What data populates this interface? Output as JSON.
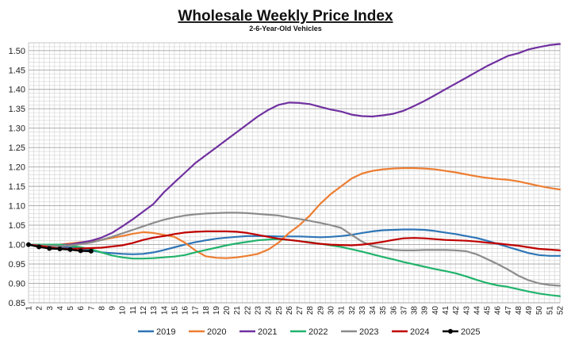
{
  "chart_data": {
    "type": "line",
    "title": "Wholesale Weekly Price Index",
    "subtitle": "2-6-Year-Old Vehicles",
    "xlabel": "",
    "ylabel": "",
    "ylim": [
      0.85,
      1.52
    ],
    "xlim": [
      1,
      52
    ],
    "y_ticks": [
      "0.85",
      "0.90",
      "0.95",
      "1.00",
      "1.05",
      "1.10",
      "1.15",
      "1.20",
      "1.25",
      "1.30",
      "1.35",
      "1.40",
      "1.45",
      "1.50"
    ],
    "x_ticks": [
      "1",
      "2",
      "3",
      "4",
      "5",
      "6",
      "7",
      "8",
      "9",
      "10",
      "11",
      "12",
      "13",
      "14",
      "15",
      "16",
      "17",
      "18",
      "19",
      "20",
      "21",
      "22",
      "23",
      "24",
      "25",
      "26",
      "27",
      "28",
      "29",
      "30",
      "31",
      "32",
      "33",
      "34",
      "35",
      "36",
      "37",
      "38",
      "39",
      "40",
      "41",
      "42",
      "43",
      "44",
      "45",
      "46",
      "47",
      "48",
      "49",
      "50",
      "51",
      "52"
    ],
    "grid": true,
    "legend_position": "bottom",
    "series": [
      {
        "name": "2019",
        "color": "#2e75b6",
        "markers": false,
        "x": [
          1,
          2,
          3,
          4,
          5,
          6,
          7,
          8,
          9,
          10,
          11,
          12,
          13,
          14,
          15,
          16,
          17,
          18,
          19,
          20,
          21,
          22,
          23,
          24,
          25,
          26,
          27,
          28,
          29,
          30,
          31,
          32,
          33,
          34,
          35,
          36,
          37,
          38,
          39,
          40,
          41,
          42,
          43,
          44,
          45,
          46,
          47,
          48,
          49,
          50,
          51,
          52
        ],
        "values": [
          1.0,
          1.0,
          0.998,
          0.995,
          0.992,
          0.99,
          0.985,
          0.98,
          0.978,
          0.976,
          0.975,
          0.976,
          0.98,
          0.986,
          0.993,
          1.0,
          1.006,
          1.011,
          1.015,
          1.018,
          1.02,
          1.022,
          1.022,
          1.022,
          1.021,
          1.021,
          1.021,
          1.02,
          1.019,
          1.02,
          1.022,
          1.025,
          1.03,
          1.034,
          1.037,
          1.038,
          1.039,
          1.039,
          1.038,
          1.035,
          1.031,
          1.027,
          1.022,
          1.017,
          1.01,
          1.002,
          0.994,
          0.986,
          0.978,
          0.973,
          0.971,
          0.971
        ]
      },
      {
        "name": "2020",
        "color": "#ed7d31",
        "markers": false,
        "x": [
          1,
          2,
          3,
          4,
          5,
          6,
          7,
          8,
          9,
          10,
          11,
          12,
          13,
          14,
          15,
          16,
          17,
          18,
          19,
          20,
          21,
          22,
          23,
          24,
          25,
          26,
          27,
          28,
          29,
          30,
          31,
          32,
          33,
          34,
          35,
          36,
          37,
          38,
          39,
          40,
          41,
          42,
          43,
          44,
          45,
          46,
          47,
          48,
          49,
          50,
          51,
          52
        ],
        "values": [
          1.0,
          1.0,
          1.0,
          1.0,
          1.003,
          1.006,
          1.008,
          1.012,
          1.017,
          1.022,
          1.028,
          1.032,
          1.03,
          1.025,
          1.02,
          1.005,
          0.985,
          0.97,
          0.966,
          0.965,
          0.967,
          0.971,
          0.976,
          0.987,
          1.005,
          1.03,
          1.05,
          1.075,
          1.105,
          1.13,
          1.15,
          1.17,
          1.183,
          1.19,
          1.194,
          1.196,
          1.197,
          1.197,
          1.196,
          1.194,
          1.19,
          1.186,
          1.181,
          1.176,
          1.172,
          1.169,
          1.167,
          1.163,
          1.157,
          1.151,
          1.146,
          1.142
        ]
      },
      {
        "name": "2021",
        "color": "#7030a0",
        "markers": false,
        "x": [
          1,
          2,
          3,
          4,
          5,
          6,
          7,
          8,
          9,
          10,
          11,
          12,
          13,
          14,
          15,
          16,
          17,
          18,
          19,
          20,
          21,
          22,
          23,
          24,
          25,
          26,
          27,
          28,
          29,
          30,
          31,
          32,
          33,
          34,
          35,
          36,
          37,
          38,
          39,
          40,
          41,
          42,
          43,
          44,
          45,
          46,
          47,
          48,
          49,
          50,
          51,
          52
        ],
        "values": [
          1.0,
          1.0,
          1.0,
          1.0,
          1.0,
          1.005,
          1.01,
          1.018,
          1.03,
          1.047,
          1.065,
          1.085,
          1.105,
          1.135,
          1.16,
          1.185,
          1.21,
          1.23,
          1.25,
          1.27,
          1.29,
          1.31,
          1.33,
          1.347,
          1.36,
          1.366,
          1.365,
          1.362,
          1.355,
          1.348,
          1.343,
          1.335,
          1.331,
          1.33,
          1.333,
          1.337,
          1.345,
          1.357,
          1.37,
          1.385,
          1.4,
          1.415,
          1.43,
          1.445,
          1.46,
          1.473,
          1.486,
          1.493,
          1.503,
          1.509,
          1.514,
          1.517
        ]
      },
      {
        "name": "2022",
        "color": "#21b36b",
        "markers": false,
        "x": [
          1,
          2,
          3,
          4,
          5,
          6,
          7,
          8,
          9,
          10,
          11,
          12,
          13,
          14,
          15,
          16,
          17,
          18,
          19,
          20,
          21,
          22,
          23,
          24,
          25,
          26,
          27,
          28,
          29,
          30,
          31,
          32,
          33,
          34,
          35,
          36,
          37,
          38,
          39,
          40,
          41,
          42,
          43,
          44,
          45,
          46,
          47,
          48,
          49,
          50,
          51,
          52
        ],
        "values": [
          1.0,
          1.0,
          1.0,
          1.0,
          0.997,
          0.993,
          0.988,
          0.98,
          0.972,
          0.967,
          0.964,
          0.964,
          0.965,
          0.967,
          0.969,
          0.973,
          0.98,
          0.986,
          0.992,
          0.998,
          1.003,
          1.007,
          1.011,
          1.013,
          1.014,
          1.012,
          1.009,
          1.006,
          1.002,
          0.998,
          0.994,
          0.988,
          0.982,
          0.975,
          0.968,
          0.962,
          0.955,
          0.949,
          0.943,
          0.937,
          0.932,
          0.926,
          0.918,
          0.909,
          0.901,
          0.895,
          0.891,
          0.885,
          0.879,
          0.874,
          0.87,
          0.867
        ]
      },
      {
        "name": "2023",
        "color": "#8c8c8c",
        "markers": false,
        "x": [
          1,
          2,
          3,
          4,
          5,
          6,
          7,
          8,
          9,
          10,
          11,
          12,
          13,
          14,
          15,
          16,
          17,
          18,
          19,
          20,
          21,
          22,
          23,
          24,
          25,
          26,
          27,
          28,
          29,
          30,
          31,
          32,
          33,
          34,
          35,
          36,
          37,
          38,
          39,
          40,
          41,
          42,
          43,
          44,
          45,
          46,
          47,
          48,
          49,
          50,
          51,
          52
        ],
        "values": [
          1.0,
          0.998,
          0.997,
          0.996,
          0.998,
          1.001,
          1.005,
          1.012,
          1.02,
          1.029,
          1.038,
          1.047,
          1.056,
          1.064,
          1.07,
          1.075,
          1.078,
          1.08,
          1.081,
          1.082,
          1.082,
          1.081,
          1.079,
          1.077,
          1.075,
          1.07,
          1.066,
          1.061,
          1.056,
          1.05,
          1.043,
          1.025,
          1.008,
          0.996,
          0.99,
          0.986,
          0.985,
          0.985,
          0.986,
          0.986,
          0.986,
          0.985,
          0.983,
          0.975,
          0.963,
          0.95,
          0.936,
          0.92,
          0.908,
          0.9,
          0.896,
          0.894
        ]
      },
      {
        "name": "2024",
        "color": "#c00000",
        "markers": false,
        "x": [
          1,
          2,
          3,
          4,
          5,
          6,
          7,
          8,
          9,
          10,
          11,
          12,
          13,
          14,
          15,
          16,
          17,
          18,
          19,
          20,
          21,
          22,
          23,
          24,
          25,
          26,
          27,
          28,
          29,
          30,
          31,
          32,
          33,
          34,
          35,
          36,
          37,
          38,
          39,
          40,
          41,
          42,
          43,
          44,
          45,
          46,
          47,
          48,
          49,
          50,
          51,
          52
        ],
        "values": [
          1.0,
          0.997,
          0.993,
          0.99,
          0.989,
          0.99,
          0.991,
          0.992,
          0.995,
          0.998,
          1.004,
          1.012,
          1.018,
          1.022,
          1.027,
          1.031,
          1.033,
          1.034,
          1.034,
          1.034,
          1.033,
          1.03,
          1.025,
          1.02,
          1.015,
          1.012,
          1.009,
          1.005,
          1.002,
          1.0,
          0.999,
          0.998,
          1.0,
          1.003,
          1.007,
          1.012,
          1.016,
          1.017,
          1.016,
          1.014,
          1.012,
          1.011,
          1.01,
          1.008,
          1.005,
          1.003,
          1.0,
          0.997,
          0.993,
          0.989,
          0.987,
          0.985
        ]
      },
      {
        "name": "2025",
        "color": "#000000",
        "markers": true,
        "x": [
          1,
          2,
          3,
          4,
          5,
          6,
          7
        ],
        "values": [
          1.0,
          0.994,
          0.99,
          0.989,
          0.987,
          0.984,
          0.983
        ]
      }
    ]
  }
}
